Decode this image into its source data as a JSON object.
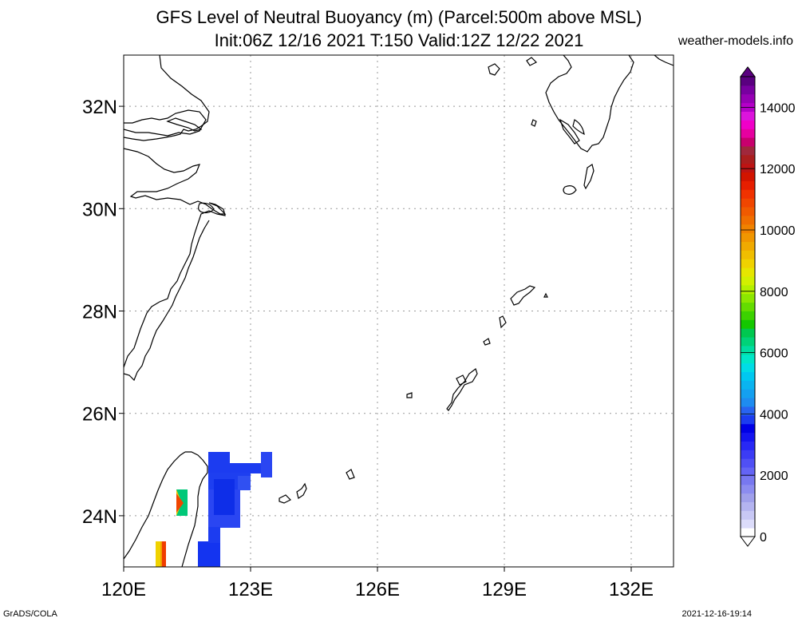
{
  "title_line1": "GFS Level of Neutral Buoyancy (m) (Parcel:500m above MSL)",
  "title_line2": "Init:06Z 12/16 2021 T:150 Valid:12Z 12/22 2021",
  "site": "weather-models.info",
  "footer_left": "GrADS/COLA",
  "footer_right": "2021-12-16-19:14",
  "map": {
    "lon_range": [
      120,
      133
    ],
    "lat_range": [
      23,
      33
    ],
    "lon_ticks": [
      120,
      123,
      126,
      129,
      132
    ],
    "lon_labels": [
      "120E",
      "123E",
      "126E",
      "129E",
      "132E"
    ],
    "lat_ticks": [
      24,
      26,
      28,
      30,
      32
    ],
    "lat_labels": [
      "24N",
      "26N",
      "28N",
      "30N",
      "32N"
    ],
    "grid": true,
    "coastline_color": "#000000"
  },
  "colorbar": {
    "labels": [
      "0",
      "2000",
      "4000",
      "6000",
      "8000",
      "10000",
      "12000",
      "14000"
    ],
    "colors": [
      "#ffffff",
      "#dcdcfa",
      "#c8c8f5",
      "#b4b4f0",
      "#a0a0eb",
      "#8c8cf0",
      "#7878f0",
      "#6464f5",
      "#5050f5",
      "#3c3cf5",
      "#2828f5",
      "#1414f0",
      "#0000e6",
      "#1c3cf0",
      "#2864f0",
      "#1e8cf0",
      "#14a0f0",
      "#0ab4f0",
      "#00c8f0",
      "#00dce6",
      "#00e6c8",
      "#00dca0",
      "#00d278",
      "#00c850",
      "#14c800",
      "#3cd200",
      "#64dc00",
      "#8ce600",
      "#b4f000",
      "#d2f000",
      "#e6e600",
      "#f0d200",
      "#f0be00",
      "#f0aa00",
      "#f09600",
      "#f08200",
      "#f06e00",
      "#f05a00",
      "#f04600",
      "#f03200",
      "#e61e00",
      "#d21400",
      "#be1414",
      "#aa1e1e",
      "#a0283c",
      "#c8006e",
      "#e600a0",
      "#f000c8",
      "#dc14dc",
      "#b400c8",
      "#9600b4",
      "#7800a0",
      "#5a0080"
    ]
  }
}
